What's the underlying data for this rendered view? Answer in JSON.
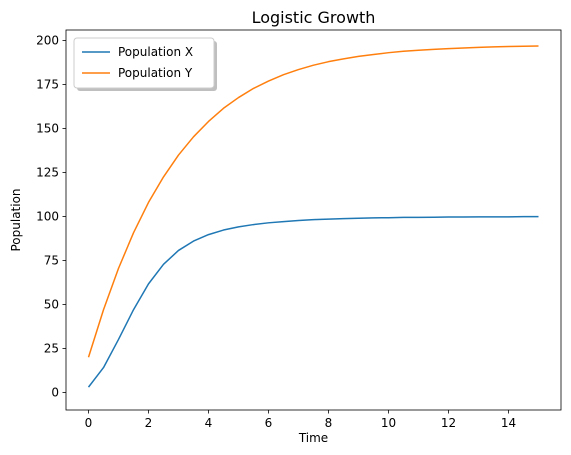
{
  "chart_data": {
    "type": "line",
    "title": "Logistic Growth",
    "xlabel": "Time",
    "ylabel": "Population",
    "xlim": [
      -0.75,
      15.75
    ],
    "ylim": [
      -10,
      206
    ],
    "xticks": [
      0,
      2,
      4,
      6,
      8,
      10,
      12,
      14
    ],
    "yticks": [
      0,
      25,
      50,
      75,
      100,
      125,
      150,
      175,
      200
    ],
    "grid": false,
    "legend_position": "top-left",
    "x": [
      0,
      0.5,
      1,
      1.5,
      2,
      2.5,
      3,
      3.5,
      4,
      4.5,
      5,
      5.5,
      6,
      6.5,
      7,
      7.5,
      8,
      8.5,
      9,
      9.5,
      10,
      10.5,
      11,
      11.5,
      12,
      12.5,
      13,
      13.5,
      14,
      14.5,
      15
    ],
    "series": [
      {
        "name": "Population X",
        "color": "#1f77b4",
        "values": [
          3.0,
          14.1,
          30.1,
          47.0,
          61.7,
          72.8,
          80.7,
          86.0,
          89.7,
          92.3,
          94.1,
          95.4,
          96.4,
          97.1,
          97.7,
          98.2,
          98.5,
          98.8,
          99.0,
          99.2,
          99.3,
          99.5,
          99.5,
          99.6,
          99.7,
          99.7,
          99.8,
          99.8,
          99.8,
          99.9,
          99.9
        ]
      },
      {
        "name": "Population Y",
        "color": "#ff7f0e",
        "values": [
          20.0,
          47.0,
          70.5,
          90.7,
          108.0,
          122.5,
          134.9,
          145.3,
          154.0,
          161.5,
          167.6,
          172.8,
          177.0,
          180.6,
          183.5,
          186.0,
          188.0,
          189.6,
          191.0,
          192.1,
          193.1,
          193.9,
          194.5,
          195.0,
          195.4,
          195.8,
          196.1,
          196.4,
          196.6,
          196.8,
          196.9
        ]
      }
    ]
  }
}
